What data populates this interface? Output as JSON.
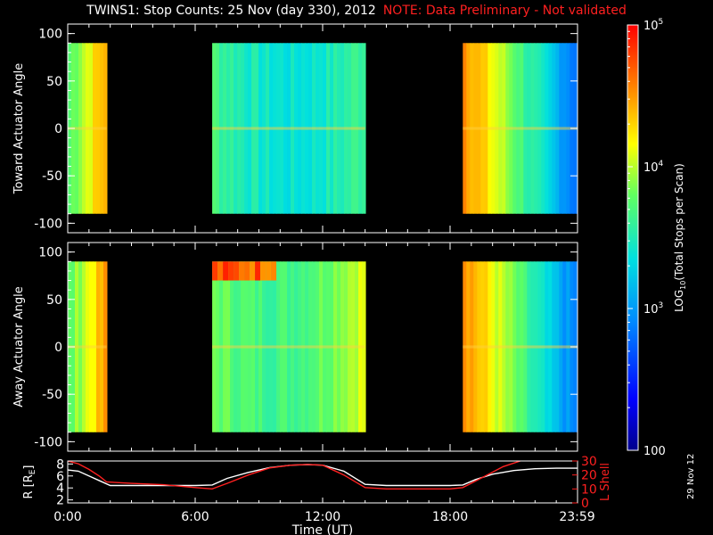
{
  "title": {
    "main": "TWINS1: Stop Counts: 25 Nov (day 330), 2012",
    "note": "NOTE: Data Preliminary - Not validated"
  },
  "date_stamp": "29 Nov 12",
  "colors": {
    "background": "#000000",
    "note": "#ff2020",
    "axes": "#ffffff",
    "r_line": "#ffffff",
    "lshell_line": "#ff2020"
  },
  "chart_data": [
    {
      "type": "heatmap",
      "name": "toward",
      "ylabel": "Toward Actuator Angle",
      "ylim": [
        -110,
        110
      ],
      "yticks": [
        100,
        50,
        0,
        -50,
        -100
      ],
      "xlim": [
        0,
        24
      ],
      "angle_range": [
        -90,
        90
      ],
      "segments": [
        {
          "start_h": 0.0,
          "end_h": 1.83
        },
        {
          "start_h": 6.8,
          "end_h": 14.0
        },
        {
          "start_h": 18.6,
          "end_h": 24.0
        }
      ]
    },
    {
      "type": "heatmap",
      "name": "away",
      "ylabel": "Away Actuator Angle",
      "ylim": [
        -110,
        110
      ],
      "yticks": [
        100,
        50,
        0,
        -50,
        -100
      ],
      "xlim": [
        0,
        24
      ],
      "angle_range": [
        -90,
        90
      ],
      "segments": [
        {
          "start_h": 0.0,
          "end_h": 1.83
        },
        {
          "start_h": 6.8,
          "end_h": 14.0
        },
        {
          "start_h": 18.6,
          "end_h": 24.0
        }
      ]
    },
    {
      "type": "line",
      "name": "orbit",
      "xlabel": "Time (UT)",
      "xtick_labels": [
        "0:00",
        "6:00",
        "12:00",
        "18:00",
        "23:59"
      ],
      "xtick_hours": [
        0,
        6,
        12,
        18,
        23.98
      ],
      "left_axis": {
        "label": "R [R",
        "label_sub": "E",
        "label_end": "]",
        "ylim": [
          1.5,
          8.5
        ],
        "ticks": [
          8,
          6,
          4,
          2
        ]
      },
      "right_axis": {
        "label": "L Shell",
        "ylim": [
          0,
          30
        ],
        "ticks": [
          30,
          20,
          10,
          0
        ]
      },
      "series": [
        {
          "axis": "left",
          "x": [
            0,
            0.5,
            1,
            1.5,
            2,
            3,
            4,
            5,
            6,
            6.8,
            7.5,
            8.5,
            9.5,
            10.5,
            11.3,
            12,
            13,
            14,
            15,
            16,
            17,
            18,
            18.6,
            19.2,
            20,
            21,
            22,
            23,
            24
          ],
          "y": [
            7.0,
            6.8,
            6.0,
            5.2,
            4.4,
            4.4,
            4.4,
            4.4,
            4.4,
            4.5,
            5.6,
            6.6,
            7.4,
            7.8,
            7.9,
            7.8,
            6.8,
            4.6,
            4.4,
            4.4,
            4.4,
            4.4,
            4.5,
            5.4,
            6.3,
            6.9,
            7.2,
            7.3,
            7.3
          ]
        },
        {
          "axis": "right",
          "x": [
            0,
            0.5,
            1,
            1.5,
            1.83,
            3,
            4.5,
            6,
            6.8,
            7.5,
            8.5,
            9.5,
            10.5,
            11.3,
            12,
            13,
            14,
            15,
            16.5,
            18,
            18.6,
            19.5,
            20.5,
            21.3
          ],
          "y": [
            30,
            28,
            24,
            19,
            15,
            14,
            13,
            11,
            10,
            14,
            20,
            25,
            27,
            27.5,
            27,
            20,
            11,
            10,
            10,
            10,
            11,
            18,
            26,
            30
          ]
        }
      ]
    },
    {
      "type": "colorbar",
      "label": "LOG",
      "label_sub": "10",
      "label_end": "(Total Stops per Scan)",
      "scale": "log",
      "range": [
        100,
        100000
      ],
      "tick_labels": [
        {
          "value": 100000,
          "base": "10",
          "exp": "5"
        },
        {
          "value": 10000,
          "base": "10",
          "exp": "4"
        },
        {
          "value": 1000,
          "base": "10",
          "exp": "3"
        },
        {
          "value": 100,
          "base": "100",
          "exp": ""
        }
      ]
    }
  ]
}
